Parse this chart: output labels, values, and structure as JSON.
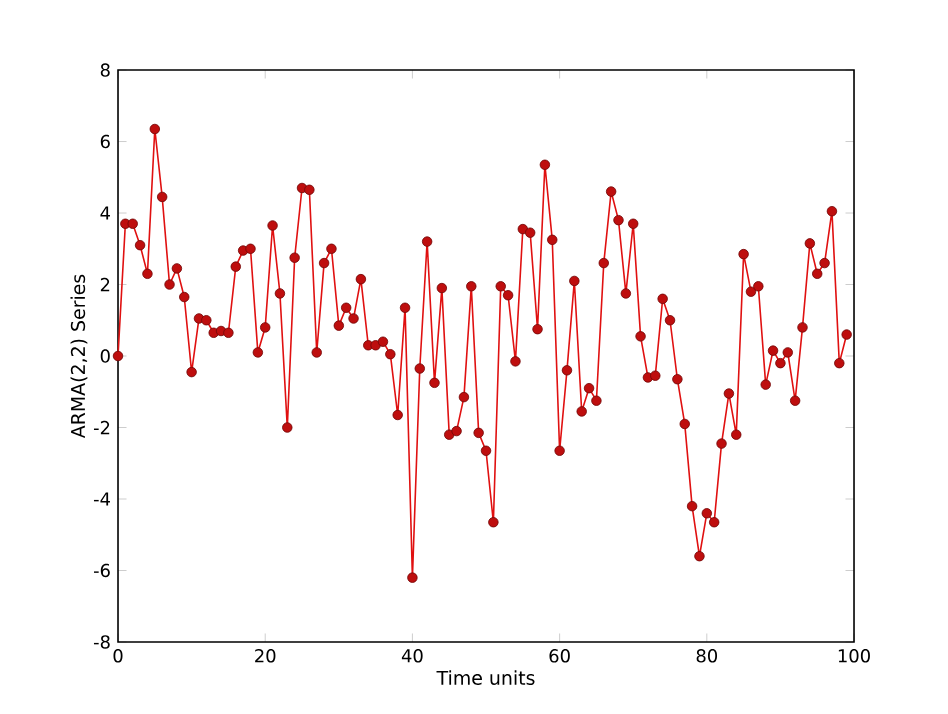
{
  "chart_data": {
    "type": "line",
    "xlabel": "Time units",
    "ylabel": "ARMA(2,2) Series",
    "xlim": [
      0,
      100
    ],
    "ylim": [
      -8,
      8
    ],
    "xticks": [
      0,
      20,
      40,
      60,
      80,
      100
    ],
    "yticks": [
      -8,
      -6,
      -4,
      -2,
      0,
      2,
      4,
      6,
      8
    ],
    "marker": "circle",
    "line_style": "solid",
    "series": [
      {
        "color": "#e01010",
        "x": [
          0,
          1,
          2,
          3,
          4,
          5,
          6,
          7,
          8,
          9,
          10,
          11,
          12,
          13,
          14,
          15,
          16,
          17,
          18,
          19,
          20,
          21,
          22,
          23,
          24,
          25,
          26,
          27,
          28,
          29,
          30,
          31,
          32,
          33,
          34,
          35,
          36,
          37,
          38,
          39,
          40,
          41,
          42,
          43,
          44,
          45,
          46,
          47,
          48,
          49,
          50,
          51,
          52,
          53,
          54,
          55,
          56,
          57,
          58,
          59,
          60,
          61,
          62,
          63,
          64,
          65,
          66,
          67,
          68,
          69,
          70,
          71,
          72,
          73,
          74,
          75,
          76,
          77,
          78,
          79,
          80,
          81,
          82,
          83,
          84,
          85,
          86,
          87,
          88,
          89,
          90,
          91,
          92,
          93,
          94,
          95,
          96,
          97,
          98,
          99
        ],
        "values": [
          0,
          3.7,
          3.7,
          3.1,
          2.3,
          6.35,
          4.45,
          2.0,
          2.45,
          1.65,
          -0.45,
          1.05,
          1.0,
          0.65,
          0.7,
          0.65,
          2.5,
          2.95,
          3.0,
          0.1,
          0.8,
          3.65,
          1.75,
          -2.0,
          2.75,
          4.7,
          4.65,
          0.1,
          2.6,
          3.0,
          0.85,
          1.35,
          1.05,
          2.15,
          0.3,
          0.3,
          0.4,
          0.05,
          -1.65,
          1.35,
          -6.2,
          -0.35,
          3.2,
          -0.75,
          1.9,
          -2.2,
          -2.1,
          -1.15,
          1.95,
          -2.15,
          -2.65,
          -4.65,
          1.95,
          1.7,
          -0.15,
          3.55,
          3.45,
          0.75,
          5.35,
          3.25,
          -2.65,
          -0.4,
          2.1,
          -1.55,
          -0.9,
          -1.25,
          2.6,
          4.6,
          3.8,
          1.75,
          3.7,
          0.55,
          -0.6,
          -0.55,
          1.6,
          1.0,
          -0.65,
          -1.9,
          -4.2,
          -5.6,
          -4.4,
          -4.65,
          -2.45,
          -1.05,
          -2.2,
          2.85,
          1.8,
          1.95,
          -0.8,
          0.15,
          -0.2,
          0.1,
          -1.25,
          0.8,
          3.15,
          2.3,
          2.6,
          4.05,
          -0.2,
          0.6
        ]
      }
    ]
  }
}
